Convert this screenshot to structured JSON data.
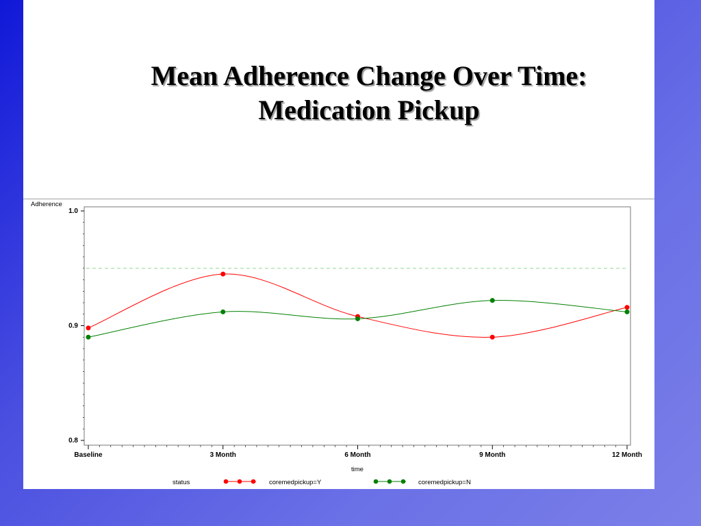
{
  "slide": {
    "title_line1": "Mean Adherence Change Over Time:",
    "title_line2": "Medication Pickup"
  },
  "colors": {
    "background_start": "#1018d8",
    "background_end": "#7b7fe8",
    "series_y": "#ff0000",
    "series_n": "#008000",
    "reference_line": "#90d890"
  },
  "chart_data": {
    "type": "line",
    "ylabel": "Adherence",
    "xlabel": "time",
    "categories": [
      "Baseline",
      "3 Month",
      "6 Month",
      "9 Month",
      "12 Month"
    ],
    "ylim": [
      0.8,
      1.0
    ],
    "yticks": [
      "1.0",
      "0.9",
      "0.8"
    ],
    "reference_line_y": 0.95,
    "series": [
      {
        "name": "coremedpickup=Y",
        "values": [
          0.898,
          0.945,
          0.908,
          0.89,
          0.916
        ]
      },
      {
        "name": "coremedpickup=N",
        "values": [
          0.89,
          0.912,
          0.906,
          0.922,
          0.912
        ]
      }
    ],
    "legend_title": "status",
    "legend_position": "bottom",
    "grid": false
  }
}
